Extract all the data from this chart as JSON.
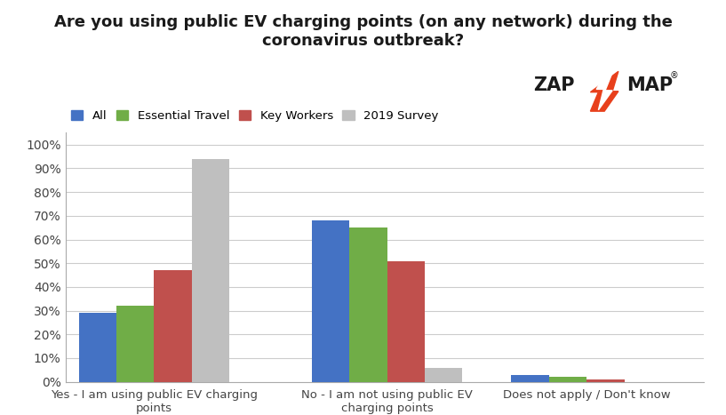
{
  "title": "Are you using public EV charging points (on any network) during the\ncoronavirus outbreak?",
  "categories": [
    "Yes - I am using public EV charging\npoints",
    "No - I am not using public EV\ncharging points",
    "Does not apply / Don't know"
  ],
  "series": {
    "All": [
      0.29,
      0.68,
      0.03
    ],
    "Essential Travel": [
      0.32,
      0.65,
      0.02
    ],
    "Key Workers": [
      0.47,
      0.51,
      0.01
    ],
    "2019 Survey": [
      0.94,
      0.06,
      0.0
    ]
  },
  "colors": {
    "All": "#4472C4",
    "Essential Travel": "#70AD47",
    "Key Workers": "#C0504D",
    "2019 Survey": "#BFBFBF"
  },
  "legend_labels": [
    "All",
    "Essential Travel",
    "Key Workers",
    "2019 Survey"
  ],
  "ylim": [
    0,
    1.05
  ],
  "yticks": [
    0.0,
    0.1,
    0.2,
    0.3,
    0.4,
    0.5,
    0.6,
    0.7,
    0.8,
    0.9,
    1.0
  ],
  "ytick_labels": [
    "0%",
    "10%",
    "20%",
    "30%",
    "40%",
    "50%",
    "60%",
    "70%",
    "80%",
    "90%",
    "100%"
  ],
  "background_color": "#FFFFFF",
  "grid_color": "#CCCCCC",
  "bar_width": 0.17,
  "zapmap_color": "#1A1A1A",
  "zapmap_orange": "#E8401C",
  "group_centers": [
    0.3,
    1.35,
    2.25
  ]
}
